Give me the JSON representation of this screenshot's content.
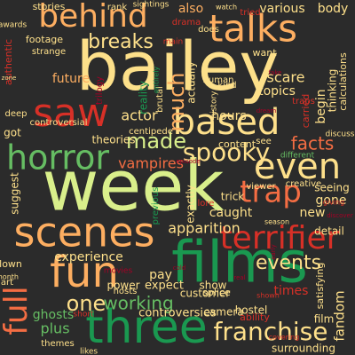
{
  "background": "#2b2b2b",
  "palette": {
    "yellow": "#fde08a",
    "lime": "#d9ef8b",
    "green": "#66bd63",
    "darkgreen": "#1a9850",
    "orange": "#f46d43",
    "peach": "#fdae61",
    "red": "#d73027",
    "dimred": "#a50026",
    "cream": "#fee08b"
  },
  "words": [
    "bailey",
    "week",
    "films",
    "three",
    "saw",
    "scenes",
    "talks",
    "behind",
    "fun",
    "based",
    "terrifier",
    "horror",
    "even",
    "trap",
    "full",
    "franchise",
    "events",
    "spooky",
    "made",
    "much",
    "facts",
    "one",
    "breaks",
    "working",
    "actor",
    "vampires",
    "apparition",
    "experience",
    "pay",
    "ghosts",
    "plus",
    "controversies",
    "new",
    "caught",
    "fandom",
    "also",
    "various",
    "body",
    "stories",
    "rank",
    "sightings",
    "drama",
    "tried",
    "watch",
    "footage",
    "strange",
    "awards",
    "authentic",
    "reality",
    "brutal",
    "main",
    "does",
    "want",
    "scare",
    "human",
    "kind",
    "history",
    "topics",
    "begin",
    "carried",
    "traps",
    "hours",
    "content",
    "see",
    "different",
    "detail",
    "gone",
    "seeing",
    "viewer",
    "creative",
    "trick",
    "lore",
    "exactly",
    "previous",
    "theories",
    "controversial",
    "got",
    "deep",
    "suggest",
    "centipede",
    "actually",
    "entirely",
    "season",
    "giving",
    "expect",
    "customer",
    "show",
    "times",
    "power",
    "hostel",
    "splice",
    "camera",
    "surrounding",
    "film",
    "ability",
    "hosts",
    "themes",
    "likes",
    "short",
    "satisfying",
    "shown",
    "covering",
    "movies",
    "clown",
    "art",
    "month",
    "thinking",
    "calculations",
    "discuss",
    "future",
    "trilogy",
    "zone",
    "discover",
    "dream",
    "early",
    "cold",
    "real",
    "fake",
    "episode"
  ]
}
